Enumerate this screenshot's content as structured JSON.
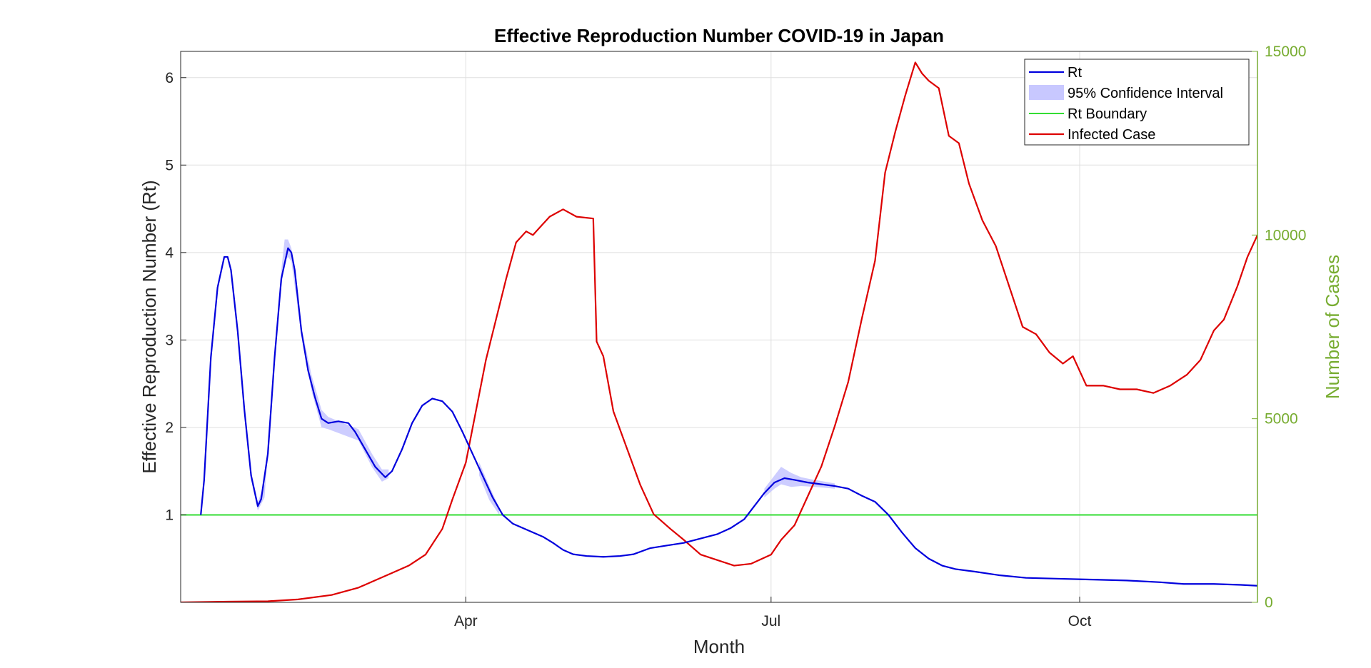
{
  "chart_data": {
    "type": "line",
    "title": "Effective Reproduction Number COVID-19 in Japan",
    "xlabel": "Month",
    "ylabel_left": "Effective Reproduction Number (Rt)",
    "ylabel_right": "Number of Cases",
    "x_range": [
      "2021-01-06",
      "2021-11-23"
    ],
    "x_ticks": [
      {
        "date": "2021-04-01",
        "label": "Apr"
      },
      {
        "date": "2021-07-01",
        "label": "Jul"
      },
      {
        "date": "2021-10-01",
        "label": "Oct"
      }
    ],
    "ylim_left": [
      0,
      6.3
    ],
    "yticks_left": [
      1,
      2,
      3,
      4,
      5,
      6
    ],
    "ylim_right": [
      0,
      15000
    ],
    "yticks_right": [
      0,
      5000,
      10000,
      15000
    ],
    "grid": true,
    "legend_position": "top-right",
    "colors": {
      "rt": "#0000dd",
      "ci": "#c8c8ff",
      "boundary": "#33dd33",
      "cases": "#dd0000",
      "right_axis": "#77ac30"
    },
    "legend": [
      "Rt",
      "95% Confidence Interval",
      "Rt Boundary",
      "Infected Case"
    ],
    "rt_boundary": 1,
    "series": [
      {
        "name": "Rt",
        "axis": "left",
        "points": [
          [
            "2021-01-12",
            1.0
          ],
          [
            "2021-01-13",
            1.4
          ],
          [
            "2021-01-15",
            2.8
          ],
          [
            "2021-01-17",
            3.6
          ],
          [
            "2021-01-19",
            3.95
          ],
          [
            "2021-01-20",
            3.95
          ],
          [
            "2021-01-21",
            3.8
          ],
          [
            "2021-01-23",
            3.1
          ],
          [
            "2021-01-25",
            2.2
          ],
          [
            "2021-01-27",
            1.45
          ],
          [
            "2021-01-29",
            1.1
          ],
          [
            "2021-01-30",
            1.18
          ],
          [
            "2021-02-01",
            1.7
          ],
          [
            "2021-02-03",
            2.8
          ],
          [
            "2021-02-05",
            3.7
          ],
          [
            "2021-02-07",
            4.05
          ],
          [
            "2021-02-08",
            4.0
          ],
          [
            "2021-02-09",
            3.8
          ],
          [
            "2021-02-11",
            3.1
          ],
          [
            "2021-02-13",
            2.65
          ],
          [
            "2021-02-15",
            2.35
          ],
          [
            "2021-02-17",
            2.1
          ],
          [
            "2021-02-19",
            2.05
          ],
          [
            "2021-02-22",
            2.07
          ],
          [
            "2021-02-25",
            2.05
          ],
          [
            "2021-02-27",
            1.95
          ],
          [
            "2021-03-02",
            1.75
          ],
          [
            "2021-03-05",
            1.55
          ],
          [
            "2021-03-08",
            1.43
          ],
          [
            "2021-03-10",
            1.5
          ],
          [
            "2021-03-13",
            1.75
          ],
          [
            "2021-03-16",
            2.05
          ],
          [
            "2021-03-19",
            2.25
          ],
          [
            "2021-03-22",
            2.33
          ],
          [
            "2021-03-25",
            2.3
          ],
          [
            "2021-03-28",
            2.18
          ],
          [
            "2021-03-31",
            1.95
          ],
          [
            "2021-04-03",
            1.7
          ],
          [
            "2021-04-06",
            1.45
          ],
          [
            "2021-04-09",
            1.2
          ],
          [
            "2021-04-12",
            1.0
          ],
          [
            "2021-04-15",
            0.9
          ],
          [
            "2021-04-18",
            0.85
          ],
          [
            "2021-04-21",
            0.8
          ],
          [
            "2021-04-24",
            0.75
          ],
          [
            "2021-04-27",
            0.68
          ],
          [
            "2021-04-30",
            0.6
          ],
          [
            "2021-05-03",
            0.55
          ],
          [
            "2021-05-07",
            0.53
          ],
          [
            "2021-05-12",
            0.52
          ],
          [
            "2021-05-17",
            0.53
          ],
          [
            "2021-05-21",
            0.55
          ],
          [
            "2021-05-26",
            0.62
          ],
          [
            "2021-05-31",
            0.65
          ],
          [
            "2021-06-05",
            0.68
          ],
          [
            "2021-06-10",
            0.73
          ],
          [
            "2021-06-15",
            0.78
          ],
          [
            "2021-06-19",
            0.85
          ],
          [
            "2021-06-23",
            0.95
          ],
          [
            "2021-06-26",
            1.1
          ],
          [
            "2021-06-29",
            1.25
          ],
          [
            "2021-07-02",
            1.37
          ],
          [
            "2021-07-05",
            1.42
          ],
          [
            "2021-07-08",
            1.4
          ],
          [
            "2021-07-12",
            1.37
          ],
          [
            "2021-07-16",
            1.35
          ],
          [
            "2021-07-20",
            1.33
          ],
          [
            "2021-07-24",
            1.3
          ],
          [
            "2021-07-28",
            1.22
          ],
          [
            "2021-08-01",
            1.15
          ],
          [
            "2021-08-05",
            1.0
          ],
          [
            "2021-08-09",
            0.8
          ],
          [
            "2021-08-13",
            0.62
          ],
          [
            "2021-08-17",
            0.5
          ],
          [
            "2021-08-21",
            0.42
          ],
          [
            "2021-08-25",
            0.38
          ],
          [
            "2021-08-31",
            0.35
          ],
          [
            "2021-09-07",
            0.31
          ],
          [
            "2021-09-15",
            0.28
          ],
          [
            "2021-09-25",
            0.27
          ],
          [
            "2021-10-05",
            0.26
          ],
          [
            "2021-10-15",
            0.25
          ],
          [
            "2021-10-25",
            0.23
          ],
          [
            "2021-11-01",
            0.21
          ],
          [
            "2021-11-10",
            0.21
          ],
          [
            "2021-11-18",
            0.2
          ],
          [
            "2021-11-23",
            0.19
          ]
        ]
      },
      {
        "name": "95% Confidence Interval",
        "axis": "left",
        "points": [
          [
            "2021-01-27",
            1.4,
            1.5
          ],
          [
            "2021-01-29",
            1.05,
            1.15
          ],
          [
            "2021-01-31",
            1.2,
            1.35
          ],
          [
            "2021-02-03",
            2.75,
            2.85
          ],
          [
            "2021-02-05",
            3.6,
            3.8
          ],
          [
            "2021-02-06",
            3.9,
            4.15
          ],
          [
            "2021-02-07",
            3.95,
            4.15
          ],
          [
            "2021-02-08",
            3.9,
            4.05
          ],
          [
            "2021-02-11",
            3.05,
            3.15
          ],
          [
            "2021-02-14",
            2.42,
            2.6
          ],
          [
            "2021-02-17",
            2.0,
            2.2
          ],
          [
            "2021-02-19",
            1.98,
            2.12
          ],
          [
            "2021-02-28",
            1.85,
            1.98
          ],
          [
            "2021-03-04",
            1.55,
            1.7
          ],
          [
            "2021-03-07",
            1.38,
            1.52
          ],
          [
            "2021-03-09",
            1.42,
            1.52
          ],
          [
            "2021-04-05",
            1.45,
            1.6
          ],
          [
            "2021-04-08",
            1.17,
            1.33
          ],
          [
            "2021-04-11",
            1.0,
            1.08
          ],
          [
            "2021-06-29",
            1.2,
            1.3
          ],
          [
            "2021-07-02",
            1.3,
            1.45
          ],
          [
            "2021-07-04",
            1.35,
            1.55
          ],
          [
            "2021-07-07",
            1.32,
            1.48
          ],
          [
            "2021-07-10",
            1.33,
            1.43
          ],
          [
            "2021-07-14",
            1.32,
            1.4
          ],
          [
            "2021-07-20",
            1.3,
            1.36
          ]
        ]
      },
      {
        "name": "Rt Boundary",
        "axis": "left",
        "points": [
          [
            "2021-01-06",
            1
          ],
          [
            "2021-11-23",
            1
          ]
        ]
      },
      {
        "name": "Infected Case",
        "axis": "right",
        "points": [
          [
            "2021-01-06",
            0
          ],
          [
            "2021-01-20",
            20
          ],
          [
            "2021-02-01",
            30
          ],
          [
            "2021-02-10",
            80
          ],
          [
            "2021-02-20",
            200
          ],
          [
            "2021-02-28",
            400
          ],
          [
            "2021-03-05",
            600
          ],
          [
            "2021-03-10",
            800
          ],
          [
            "2021-03-15",
            1000
          ],
          [
            "2021-03-20",
            1300
          ],
          [
            "2021-03-25",
            2000
          ],
          [
            "2021-03-28",
            2800
          ],
          [
            "2021-04-01",
            3800
          ],
          [
            "2021-04-04",
            5200
          ],
          [
            "2021-04-07",
            6600
          ],
          [
            "2021-04-10",
            7700
          ],
          [
            "2021-04-13",
            8800
          ],
          [
            "2021-04-16",
            9800
          ],
          [
            "2021-04-19",
            10100
          ],
          [
            "2021-04-21",
            10000
          ],
          [
            "2021-04-23",
            10200
          ],
          [
            "2021-04-26",
            10500
          ],
          [
            "2021-04-30",
            10700
          ],
          [
            "2021-05-04",
            10500
          ],
          [
            "2021-05-09",
            10450
          ],
          [
            "2021-05-10",
            7100
          ],
          [
            "2021-05-12",
            6700
          ],
          [
            "2021-05-15",
            5200
          ],
          [
            "2021-05-19",
            4200
          ],
          [
            "2021-05-23",
            3200
          ],
          [
            "2021-05-27",
            2400
          ],
          [
            "2021-06-01",
            2000
          ],
          [
            "2021-06-05",
            1700
          ],
          [
            "2021-06-10",
            1300
          ],
          [
            "2021-06-15",
            1150
          ],
          [
            "2021-06-20",
            1000
          ],
          [
            "2021-06-25",
            1050
          ],
          [
            "2021-07-01",
            1300
          ],
          [
            "2021-07-04",
            1700
          ],
          [
            "2021-07-08",
            2100
          ],
          [
            "2021-07-12",
            2900
          ],
          [
            "2021-07-16",
            3700
          ],
          [
            "2021-07-20",
            4800
          ],
          [
            "2021-07-24",
            6000
          ],
          [
            "2021-07-28",
            7700
          ],
          [
            "2021-08-01",
            9300
          ],
          [
            "2021-08-04",
            11700
          ],
          [
            "2021-08-07",
            12800
          ],
          [
            "2021-08-10",
            13800
          ],
          [
            "2021-08-13",
            14700
          ],
          [
            "2021-08-15",
            14400
          ],
          [
            "2021-08-17",
            14200
          ],
          [
            "2021-08-20",
            14000
          ],
          [
            "2021-08-23",
            12700
          ],
          [
            "2021-08-26",
            12500
          ],
          [
            "2021-08-29",
            11400
          ],
          [
            "2021-09-02",
            10400
          ],
          [
            "2021-09-06",
            9700
          ],
          [
            "2021-09-10",
            8600
          ],
          [
            "2021-09-14",
            7500
          ],
          [
            "2021-09-18",
            7300
          ],
          [
            "2021-09-22",
            6800
          ],
          [
            "2021-09-26",
            6500
          ],
          [
            "2021-09-29",
            6700
          ],
          [
            "2021-10-03",
            5900
          ],
          [
            "2021-10-08",
            5900
          ],
          [
            "2021-10-13",
            5800
          ],
          [
            "2021-10-18",
            5800
          ],
          [
            "2021-10-23",
            5700
          ],
          [
            "2021-10-28",
            5900
          ],
          [
            "2021-11-02",
            6200
          ],
          [
            "2021-11-06",
            6600
          ],
          [
            "2021-11-10",
            7400
          ],
          [
            "2021-11-13",
            7700
          ],
          [
            "2021-11-17",
            8600
          ],
          [
            "2021-11-20",
            9400
          ],
          [
            "2021-11-23",
            10000
          ]
        ]
      }
    ]
  }
}
